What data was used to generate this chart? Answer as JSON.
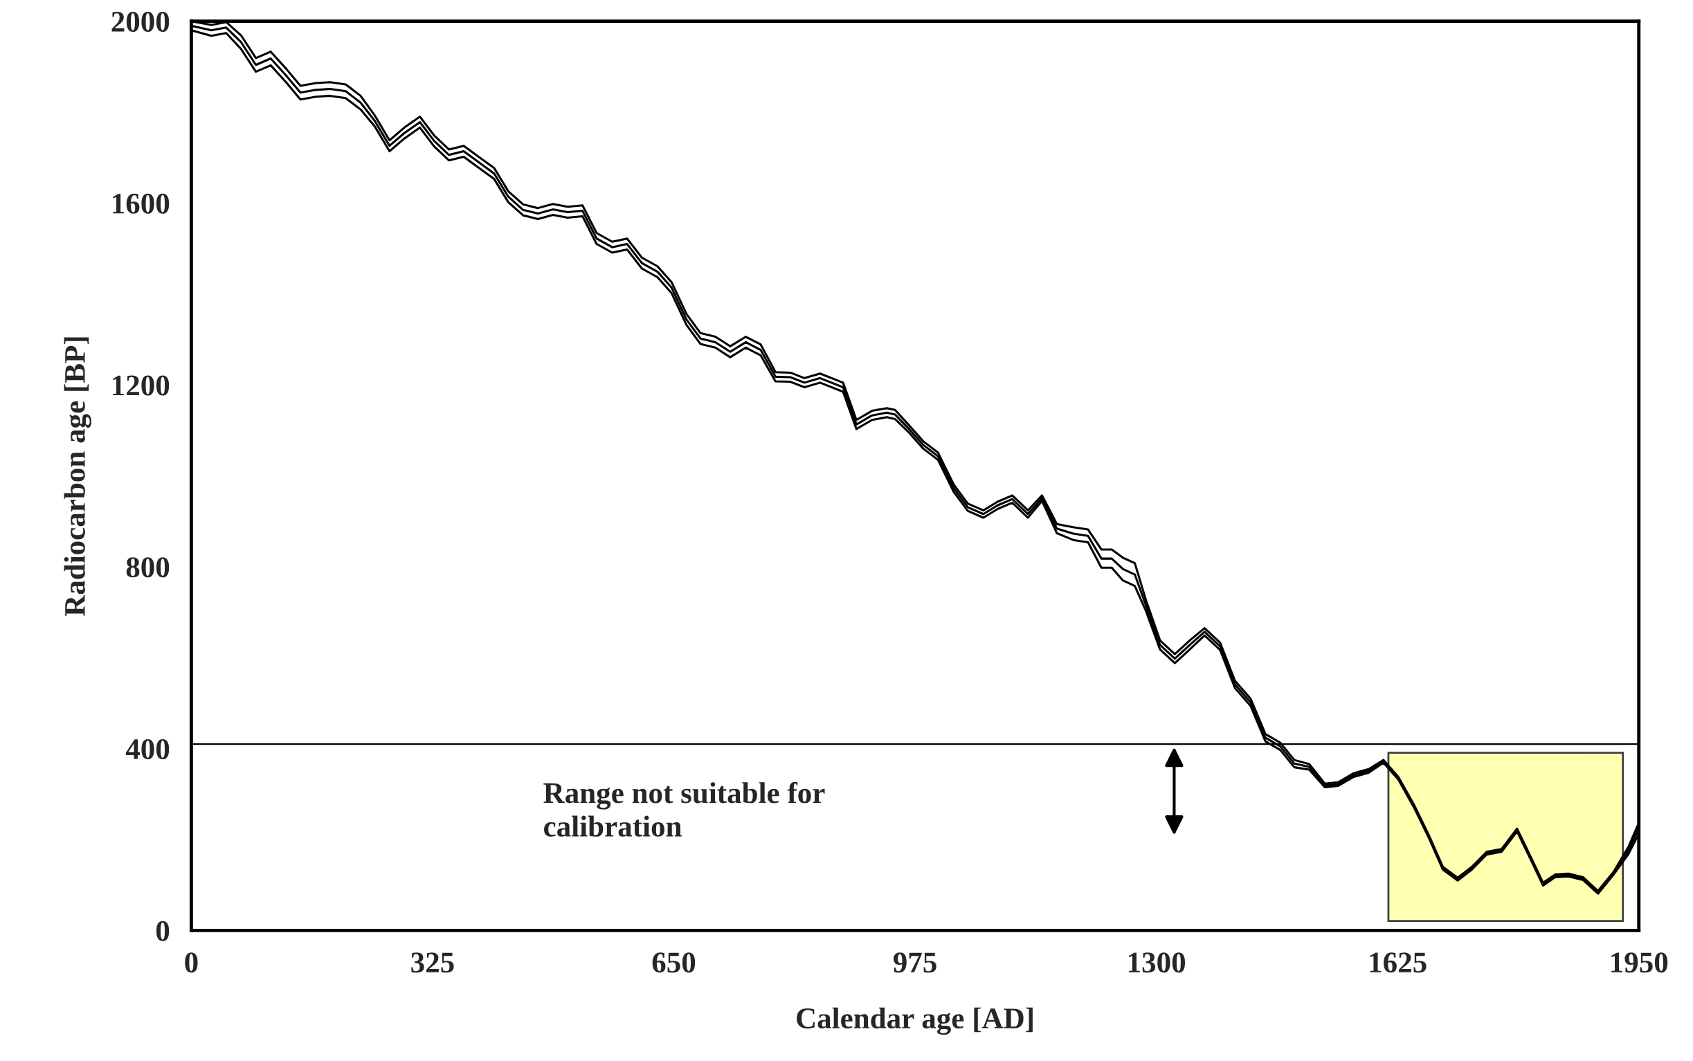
{
  "chart_data": {
    "type": "line",
    "xlabel": "Calendar age [AD]",
    "ylabel": "Radiocarbon age [BP]",
    "x": [
      0,
      27,
      47,
      67,
      87,
      107,
      128,
      147,
      168,
      187,
      208,
      228,
      247,
      267,
      287,
      308,
      327,
      347,
      367,
      387,
      408,
      427,
      447,
      467,
      487,
      507,
      527,
      546,
      567,
      587,
      607,
      628,
      647,
      667,
      686,
      706,
      726,
      747,
      767,
      787,
      807,
      826,
      847,
      878,
      896,
      917,
      937,
      948,
      967,
      986,
      1006,
      1027,
      1046,
      1067,
      1086,
      1106,
      1127,
      1146,
      1166,
      1188,
      1208,
      1226,
      1240,
      1255,
      1271,
      1286,
      1305,
      1325,
      1345,
      1365,
      1386,
      1406,
      1427,
      1447,
      1467,
      1486,
      1506,
      1527,
      1545,
      1566,
      1586,
      1606,
      1626,
      1647,
      1667,
      1686,
      1706,
      1725,
      1745,
      1765,
      1786,
      1805,
      1821,
      1837,
      1855,
      1875,
      1895,
      1916,
      1936,
      1950
    ],
    "series": [
      {
        "color": "#000000",
        "values": [
          2000,
          1992,
          1998,
          1969,
          1919,
          1933,
          1895,
          1858,
          1864,
          1866,
          1861,
          1836,
          1793,
          1738,
          1766,
          1790,
          1749,
          1718,
          1726,
          1702,
          1677,
          1626,
          1597,
          1589,
          1598,
          1592,
          1595,
          1534,
          1515,
          1522,
          1480,
          1461,
          1426,
          1356,
          1314,
          1306,
          1285,
          1306,
          1289,
          1228,
          1227,
          1215,
          1225,
          1205,
          1123,
          1143,
          1149,
          1145,
          1111,
          1076,
          1051,
          981,
          939,
          924,
          943,
          957,
          924,
          957,
          894,
          887,
          882,
          838,
          838,
          820,
          808,
          727,
          638,
          608,
          638,
          665,
          633,
          549,
          510,
          432,
          413,
          375,
          366,
          323,
          326,
          346,
          355,
          375,
          338,
          277,
          210,
          140,
          116,
          140,
          173,
          179,
          224,
          160,
          105,
          123,
          125,
          117,
          87,
          129,
          184,
          237
        ]
      },
      {
        "color": "#000000",
        "values": [
          1990,
          1980,
          1986,
          1954,
          1904,
          1918,
          1880,
          1843,
          1849,
          1851,
          1846,
          1821,
          1781,
          1726,
          1754,
          1778,
          1737,
          1706,
          1714,
          1690,
          1665,
          1614,
          1585,
          1577,
          1586,
          1580,
          1583,
          1522,
          1503,
          1510,
          1468,
          1449,
          1414,
          1344,
          1302,
          1294,
          1273,
          1294,
          1277,
          1218,
          1217,
          1205,
          1215,
          1195,
          1113,
          1133,
          1139,
          1135,
          1103,
          1068,
          1043,
          973,
          931,
          916,
          935,
          949,
          916,
          951,
          884,
          873,
          868,
          818,
          818,
          795,
          783,
          715,
          628,
          598,
          628,
          657,
          625,
          541,
          502,
          424,
          405,
          367,
          360,
          319,
          322,
          342,
          351,
          372,
          335,
          274,
          207,
          137,
          113,
          137,
          170,
          176,
          221,
          157,
          102,
          120,
          122,
          114,
          84,
          126,
          176,
          225
        ]
      },
      {
        "color": "#000000",
        "values": [
          1980,
          1968,
          1974,
          1939,
          1889,
          1903,
          1865,
          1828,
          1834,
          1836,
          1831,
          1806,
          1769,
          1714,
          1742,
          1766,
          1725,
          1694,
          1702,
          1678,
          1653,
          1602,
          1573,
          1565,
          1574,
          1568,
          1571,
          1510,
          1491,
          1498,
          1456,
          1437,
          1402,
          1332,
          1290,
          1282,
          1261,
          1282,
          1265,
          1208,
          1207,
          1195,
          1205,
          1185,
          1103,
          1123,
          1129,
          1125,
          1095,
          1060,
          1035,
          965,
          923,
          908,
          927,
          941,
          908,
          945,
          874,
          859,
          854,
          798,
          798,
          770,
          758,
          703,
          618,
          588,
          618,
          649,
          617,
          533,
          494,
          416,
          397,
          359,
          354,
          315,
          318,
          338,
          347,
          369,
          332,
          271,
          204,
          134,
          110,
          134,
          167,
          173,
          218,
          154,
          99,
          117,
          119,
          111,
          81,
          123,
          168,
          213
        ]
      }
    ],
    "xlim": [
      0,
      1950
    ],
    "xticks": [
      0,
      325,
      650,
      975,
      1300,
      1625,
      1950
    ],
    "ylim": [
      0,
      2000
    ],
    "yticks": [
      0,
      400,
      800,
      1200,
      1600,
      2000
    ],
    "ref_lines": [
      {
        "axis": "y",
        "value": 410,
        "color": "#000000"
      }
    ],
    "annotations": [
      "Range not suitable for calibration"
    ],
    "grid": false,
    "legend": false,
    "marker": "none",
    "line_style": "solid"
  }
}
